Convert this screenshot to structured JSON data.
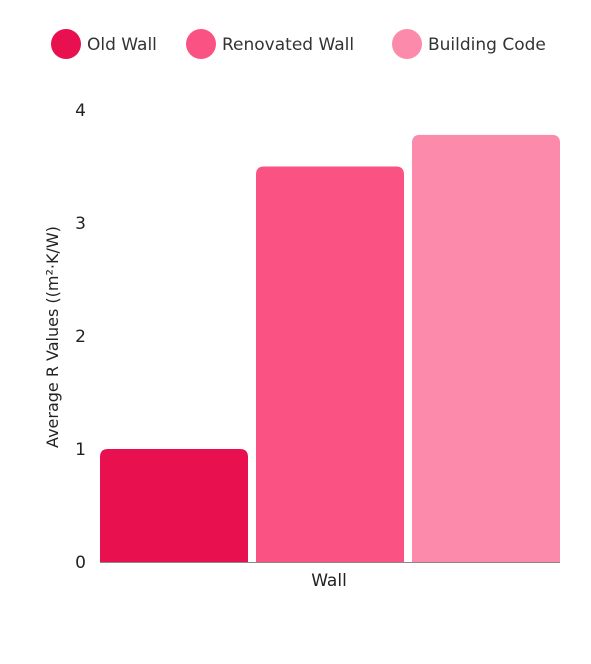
{
  "chart_data": {
    "type": "bar",
    "categories": [
      "Wall"
    ],
    "series": [
      {
        "name": "Old Wall",
        "values": [
          1.0
        ],
        "color": "#e8104f"
      },
      {
        "name": "Renovated Wall",
        "values": [
          3.5
        ],
        "color": "#f95283"
      },
      {
        "name": "Building Code",
        "values": [
          3.78
        ],
        "color": "#fc8bab"
      }
    ],
    "title": "",
    "xlabel": "",
    "ylabel": "Average R Values ((m²·K/W)",
    "ylim": [
      0,
      4
    ],
    "yticks": [
      "0",
      "1",
      "2",
      "3",
      "4"
    ],
    "grid": false,
    "legend_position": "top"
  }
}
